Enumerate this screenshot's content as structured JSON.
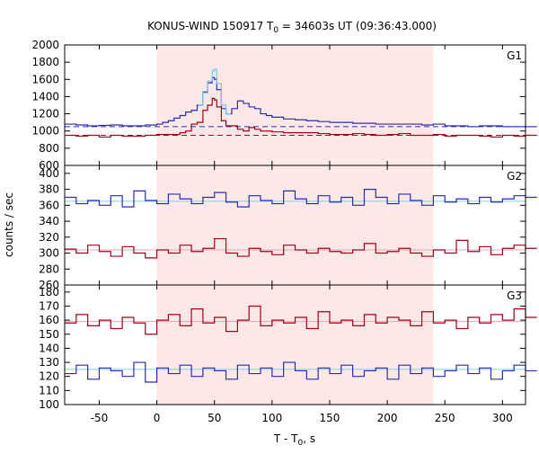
{
  "chart_data": {
    "type": "line",
    "title": "KONUS-WIND 150917 T0 = 34603s UT (09:36:43.000)",
    "title_parts": {
      "pre": "KONUS-WIND 150917 T",
      "sub": "0",
      "post": " = 34603s UT (09:36:43.000)"
    },
    "xlabel_parts": {
      "pre": "T - T",
      "sub": "0",
      "post": ", s"
    },
    "ylabel": "counts / sec",
    "xlim": [
      -80,
      320
    ],
    "xticks": [
      -50,
      0,
      50,
      100,
      150,
      200,
      250,
      300
    ],
    "shaded_interval": [
      0,
      240
    ],
    "colors": {
      "blue": "#2b2bb0",
      "red": "#a00018",
      "cyan": "#6ec8ee",
      "shade": "#fde8e8",
      "bg_blue": "#2b2bb0",
      "bg_red": "#b00020",
      "bg_cyan": "#7fd0f0",
      "bg_pink": "#f4a0b4"
    },
    "panels": [
      {
        "label": "G1",
        "ylim": [
          600,
          2000
        ],
        "yticks": [
          600,
          800,
          1000,
          1200,
          1400,
          1600,
          1800,
          2000
        ],
        "backgrounds": [
          {
            "color_key": "bg_blue",
            "value": 1050,
            "dash": "6,4"
          },
          {
            "color_key": "bg_red",
            "value": 950,
            "dash": "6,4"
          }
        ],
        "series": [
          {
            "color_key": "blue",
            "x": [
              -80,
              -70,
              -60,
              -50,
              -40,
              -30,
              -20,
              -10,
              0,
              5,
              10,
              15,
              20,
              25,
              30,
              35,
              40,
              44,
              48,
              50,
              52,
              56,
              60,
              65,
              70,
              75,
              80,
              85,
              90,
              95,
              100,
              110,
              120,
              130,
              140,
              150,
              160,
              170,
              180,
              190,
              200,
              210,
              220,
              230,
              240,
              250,
              260,
              270,
              280,
              290,
              300,
              310,
              320
            ],
            "y": [
              1080,
              1070,
              1060,
              1065,
              1070,
              1060,
              1060,
              1070,
              1080,
              1100,
              1120,
              1150,
              1180,
              1220,
              1240,
              1300,
              1450,
              1560,
              1620,
              1600,
              1480,
              1260,
              1200,
              1260,
              1350,
              1320,
              1280,
              1260,
              1200,
              1180,
              1160,
              1140,
              1130,
              1120,
              1110,
              1100,
              1100,
              1090,
              1090,
              1080,
              1080,
              1080,
              1080,
              1070,
              1080,
              1060,
              1060,
              1050,
              1060,
              1060,
              1050,
              1050,
              1050
            ]
          },
          {
            "color_key": "cyan",
            "x": [
              36,
              40,
              44,
              48,
              50,
              52,
              56,
              60
            ],
            "y": [
              1300,
              1460,
              1580,
              1700,
              1720,
              1550,
              1300,
              1200
            ]
          },
          {
            "color_key": "red",
            "x": [
              -80,
              -70,
              -60,
              -50,
              -40,
              -30,
              -20,
              -10,
              0,
              10,
              20,
              25,
              30,
              35,
              40,
              44,
              48,
              50,
              52,
              56,
              60,
              70,
              75,
              80,
              85,
              90,
              100,
              110,
              120,
              130,
              140,
              150,
              160,
              170,
              180,
              190,
              200,
              210,
              220,
              230,
              240,
              250,
              260,
              270,
              280,
              290,
              300,
              310,
              320
            ],
            "y": [
              950,
              940,
              950,
              930,
              950,
              940,
              940,
              950,
              960,
              960,
              980,
              1000,
              1080,
              1100,
              1240,
              1300,
              1380,
              1360,
              1280,
              1120,
              1060,
              1020,
              1000,
              1040,
              1020,
              1000,
              990,
              980,
              980,
              980,
              970,
              960,
              960,
              970,
              960,
              950,
              960,
              970,
              950,
              950,
              960,
              940,
              950,
              950,
              940,
              930,
              950,
              940,
              950
            ]
          }
        ]
      },
      {
        "label": "G2",
        "ylim": [
          260,
          410
        ],
        "yticks": [
          260,
          280,
          300,
          320,
          340,
          360,
          380,
          400
        ],
        "backgrounds": [
          {
            "color_key": "bg_cyan",
            "value": 365,
            "dash": ""
          },
          {
            "color_key": "bg_pink",
            "value": 304,
            "dash": ""
          }
        ],
        "series": [
          {
            "color_key": "blue",
            "x": [
              -80,
              -70,
              -60,
              -50,
              -40,
              -30,
              -20,
              -10,
              0,
              10,
              20,
              30,
              40,
              50,
              60,
              70,
              80,
              90,
              100,
              110,
              120,
              130,
              140,
              150,
              160,
              170,
              180,
              190,
              200,
              210,
              220,
              230,
              240,
              250,
              260,
              270,
              280,
              290,
              300,
              310,
              320
            ],
            "y": [
              370,
              362,
              366,
              360,
              372,
              358,
              378,
              366,
              362,
              374,
              368,
              362,
              370,
              376,
              364,
              358,
              372,
              366,
              362,
              378,
              368,
              362,
              372,
              364,
              370,
              360,
              380,
              370,
              362,
              374,
              366,
              360,
              372,
              364,
              368,
              362,
              370,
              364,
              368,
              372,
              370
            ]
          },
          {
            "color_key": "red",
            "x": [
              -80,
              -70,
              -60,
              -50,
              -40,
              -30,
              -20,
              -10,
              0,
              10,
              20,
              30,
              40,
              50,
              60,
              70,
              80,
              90,
              100,
              110,
              120,
              130,
              140,
              150,
              160,
              170,
              180,
              190,
              200,
              210,
              220,
              230,
              240,
              250,
              260,
              270,
              280,
              290,
              300,
              310,
              320
            ],
            "y": [
              305,
              300,
              310,
              302,
              296,
              308,
              300,
              294,
              304,
              300,
              310,
              302,
              306,
              318,
              300,
              296,
              306,
              302,
              298,
              310,
              304,
              300,
              306,
              302,
              300,
              304,
              312,
              300,
              302,
              306,
              300,
              296,
              304,
              300,
              316,
              302,
              308,
              298,
              306,
              310,
              306
            ]
          }
        ]
      },
      {
        "label": "G3",
        "ylim": [
          100,
          185
        ],
        "yticks": [
          100,
          110,
          120,
          130,
          140,
          150,
          160,
          170,
          180
        ],
        "backgrounds": [
          {
            "color_key": "bg_pink",
            "value": 159,
            "dash": ""
          },
          {
            "color_key": "bg_cyan",
            "value": 125,
            "dash": ""
          }
        ],
        "series": [
          {
            "color_key": "red",
            "x": [
              -80,
              -70,
              -60,
              -50,
              -40,
              -30,
              -20,
              -10,
              0,
              10,
              20,
              30,
              40,
              50,
              60,
              70,
              80,
              90,
              100,
              110,
              120,
              130,
              140,
              150,
              160,
              170,
              180,
              190,
              200,
              210,
              220,
              230,
              240,
              250,
              260,
              270,
              280,
              290,
              300,
              310,
              320
            ],
            "y": [
              158,
              164,
              156,
              160,
              154,
              162,
              158,
              150,
              160,
              164,
              156,
              168,
              158,
              162,
              152,
              160,
              170,
              156,
              160,
              158,
              162,
              154,
              166,
              158,
              160,
              156,
              164,
              158,
              162,
              160,
              156,
              166,
              158,
              160,
              154,
              162,
              158,
              164,
              160,
              168,
              162
            ]
          },
          {
            "color_key": "blue",
            "x": [
              -80,
              -70,
              -60,
              -50,
              -40,
              -30,
              -20,
              -10,
              0,
              10,
              20,
              30,
              40,
              50,
              60,
              70,
              80,
              90,
              100,
              110,
              120,
              130,
              140,
              150,
              160,
              170,
              180,
              190,
              200,
              210,
              220,
              230,
              240,
              250,
              260,
              270,
              280,
              290,
              300,
              310,
              320
            ],
            "y": [
              122,
              128,
              118,
              126,
              124,
              120,
              130,
              116,
              126,
              122,
              128,
              120,
              126,
              124,
              118,
              128,
              122,
              126,
              120,
              130,
              124,
              118,
              126,
              122,
              128,
              120,
              124,
              126,
              118,
              128,
              122,
              126,
              120,
              124,
              128,
              122,
              126,
              118,
              124,
              128,
              124
            ]
          }
        ]
      }
    ]
  }
}
